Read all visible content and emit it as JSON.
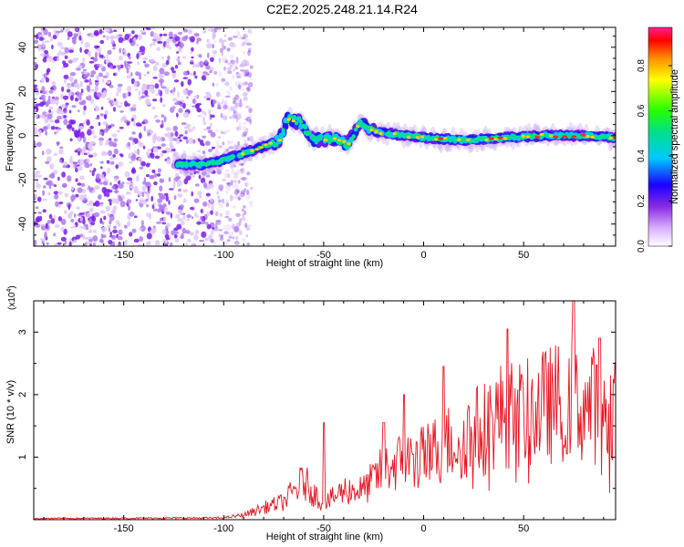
{
  "title": "C2E2.2025.248.21.14.R24",
  "colors": {
    "snr_line": "#e8141e",
    "axis": "#000000",
    "noise": "#8a2be2"
  },
  "chart_data": [
    {
      "name": "spectrogram",
      "type": "heatmap",
      "xlabel": "Height of straight line (km)",
      "ylabel": "Frequency (Hz)",
      "xlim": [
        -195,
        96
      ],
      "ylim": [
        -50,
        49
      ],
      "xticks": [
        -150,
        -100,
        -50,
        0,
        50
      ],
      "yticks": [
        -40,
        -20,
        0,
        20,
        40
      ],
      "colorbar": {
        "label": "Normalized spectral amplitude",
        "range": [
          0.0,
          0.97
        ],
        "ticks": [
          0.0,
          0.2,
          0.4,
          0.6,
          0.8
        ],
        "tick_labels": [
          "0.0",
          "0.2",
          "0.4",
          "0.6",
          "0.8"
        ]
      },
      "noise_region": {
        "x_range": [
          -195,
          -92
        ],
        "freq_range": [
          -50,
          49
        ]
      },
      "ridge": [
        {
          "x": -122,
          "f": -13
        },
        {
          "x": -110,
          "f": -13
        },
        {
          "x": -100,
          "f": -11
        },
        {
          "x": -90,
          "f": -8
        },
        {
          "x": -80,
          "f": -5
        },
        {
          "x": -72,
          "f": -2
        },
        {
          "x": -68,
          "f": 8
        },
        {
          "x": -62,
          "f": 6
        },
        {
          "x": -55,
          "f": -2
        },
        {
          "x": -45,
          "f": -1
        },
        {
          "x": -38,
          "f": -4
        },
        {
          "x": -32,
          "f": 6
        },
        {
          "x": -25,
          "f": 2
        },
        {
          "x": -10,
          "f": 0
        },
        {
          "x": 0,
          "f": -1
        },
        {
          "x": 20,
          "f": -2
        },
        {
          "x": 40,
          "f": -1
        },
        {
          "x": 60,
          "f": 0
        },
        {
          "x": 80,
          "f": 0
        },
        {
          "x": 96,
          "f": -1
        }
      ]
    },
    {
      "name": "snr",
      "type": "line",
      "xlabel": "Height of straight line (km)",
      "ylabel": "SNR (10 * v/v)",
      "y_scale_label": "(x10",
      "y_scale_exp": "4",
      "y_scale_close": ")",
      "xlim": [
        -195,
        96
      ],
      "ylim": [
        0,
        3.5
      ],
      "xticks": [
        -150,
        -100,
        -50,
        0,
        50
      ],
      "yticks": [
        1,
        2,
        3
      ],
      "envelope": [
        {
          "x": -195,
          "y": 0.02
        },
        {
          "x": -100,
          "y": 0.03
        },
        {
          "x": -90,
          "y": 0.08
        },
        {
          "x": -80,
          "y": 0.2
        },
        {
          "x": -70,
          "y": 0.3
        },
        {
          "x": -60,
          "y": 0.65
        },
        {
          "x": -50,
          "y": 0.25
        },
        {
          "x": -40,
          "y": 0.5
        },
        {
          "x": -30,
          "y": 0.5
        },
        {
          "x": -20,
          "y": 0.85
        },
        {
          "x": -10,
          "y": 1.0
        },
        {
          "x": 0,
          "y": 1.05
        },
        {
          "x": 10,
          "y": 1.25
        },
        {
          "x": 20,
          "y": 1.4
        },
        {
          "x": 30,
          "y": 1.55
        },
        {
          "x": 40,
          "y": 1.8
        },
        {
          "x": 50,
          "y": 1.75
        },
        {
          "x": 60,
          "y": 1.9
        },
        {
          "x": 70,
          "y": 2.0
        },
        {
          "x": 80,
          "y": 1.9
        },
        {
          "x": 96,
          "y": 2.0
        }
      ],
      "peaks": [
        {
          "x": -50,
          "y": 1.55
        },
        {
          "x": -20,
          "y": 1.55
        },
        {
          "x": -10,
          "y": 2.0
        },
        {
          "x": 10,
          "y": 2.45
        },
        {
          "x": 42,
          "y": 3.05
        },
        {
          "x": 75,
          "y": 3.5
        },
        {
          "x": 88,
          "y": 2.9
        }
      ]
    }
  ]
}
